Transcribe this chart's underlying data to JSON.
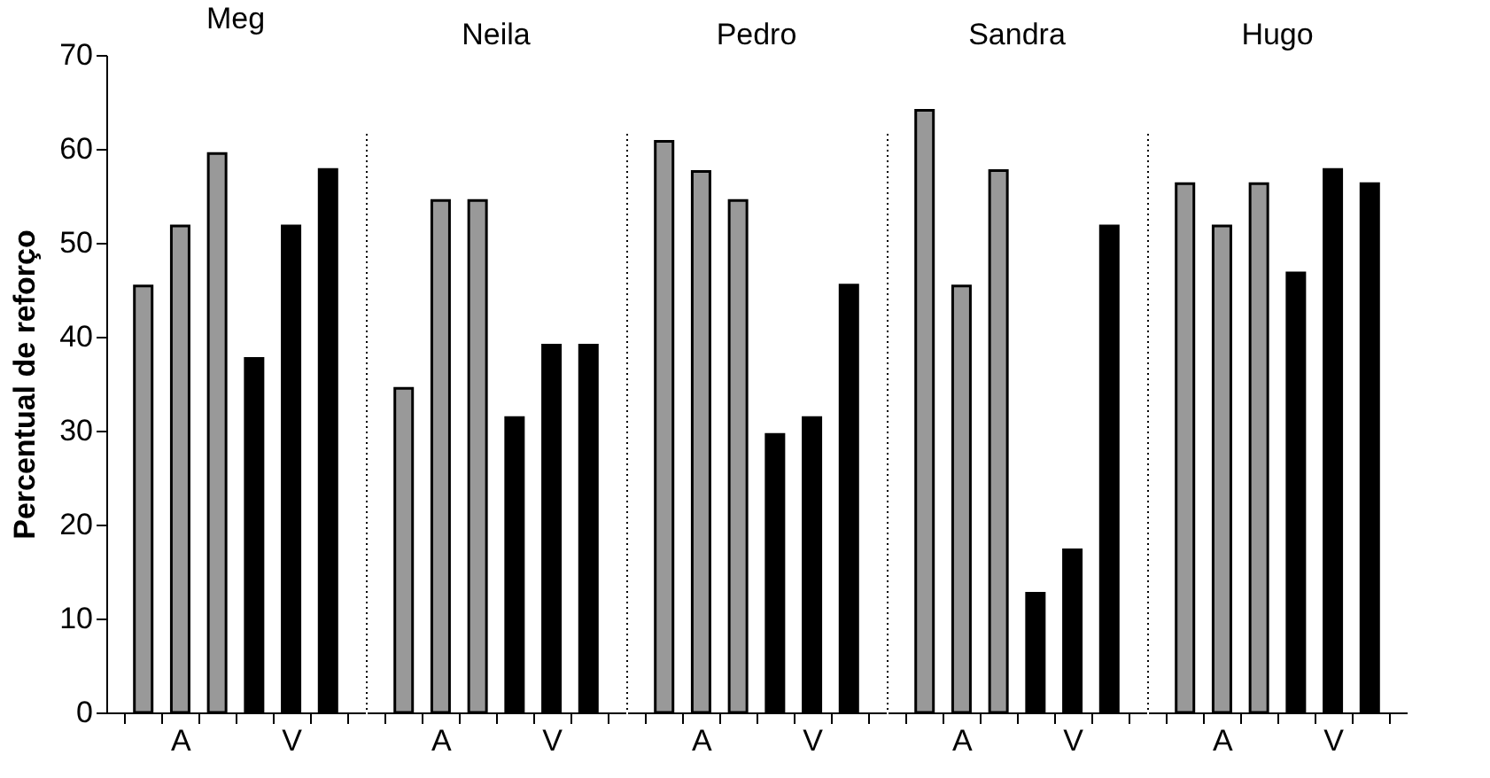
{
  "chart_data": [
    {
      "type": "bar",
      "title": "Meg",
      "ylabel": "Percentual de reforço",
      "categories": [
        null,
        "A",
        null,
        null,
        "V",
        null
      ],
      "values": [
        45.4,
        51.8,
        59.5,
        37.7,
        51.8,
        57.8
      ],
      "colors": [
        "#999999",
        "#999999",
        "#999999",
        "#000000",
        "#000000",
        "#000000"
      ],
      "ylim": [
        0,
        70
      ],
      "yticks": [
        0,
        10,
        20,
        30,
        40,
        50,
        60,
        70
      ]
    },
    {
      "type": "bar",
      "title": "Neila",
      "categories": [
        null,
        "A",
        null,
        null,
        "V",
        null
      ],
      "values": [
        34.5,
        54.5,
        54.5,
        31.4,
        39.1,
        39.1
      ],
      "colors": [
        "#999999",
        "#999999",
        "#999999",
        "#000000",
        "#000000",
        "#000000"
      ],
      "ylim": [
        0,
        70
      ],
      "tick_labels": "x"
    },
    {
      "type": "bar",
      "title": "Pedro",
      "categories": [
        null,
        "A",
        null,
        null,
        "V",
        null
      ],
      "values": [
        60.8,
        57.6,
        54.5,
        29.6,
        31.4,
        45.5
      ],
      "colors": [
        "#999999",
        "#999999",
        "#999999",
        "#000000",
        "#000000",
        "#000000"
      ],
      "ylim": [
        0,
        70
      ],
      "tick_labels": "x"
    },
    {
      "type": "bar",
      "title": "Sandra",
      "categories": [
        null,
        "A",
        null,
        null,
        "V",
        null
      ],
      "values": [
        64.1,
        45.4,
        57.7,
        12.7,
        17.3,
        51.8
      ],
      "colors": [
        "#999999",
        "#999999",
        "#999999",
        "#000000",
        "#000000",
        "#000000"
      ],
      "ylim": [
        0,
        70
      ],
      "tick_labels": "x"
    },
    {
      "type": "bar",
      "title": "Hugo",
      "categories": [
        null,
        "A",
        null,
        null,
        "V",
        null
      ],
      "values": [
        56.3,
        51.8,
        56.3,
        46.8,
        57.8,
        56.3
      ],
      "colors": [
        "#999999",
        "#999999",
        "#999999",
        "#000000",
        "#000000",
        "#000000"
      ],
      "ylim": [
        0,
        70
      ],
      "tick_labels": "x"
    }
  ]
}
